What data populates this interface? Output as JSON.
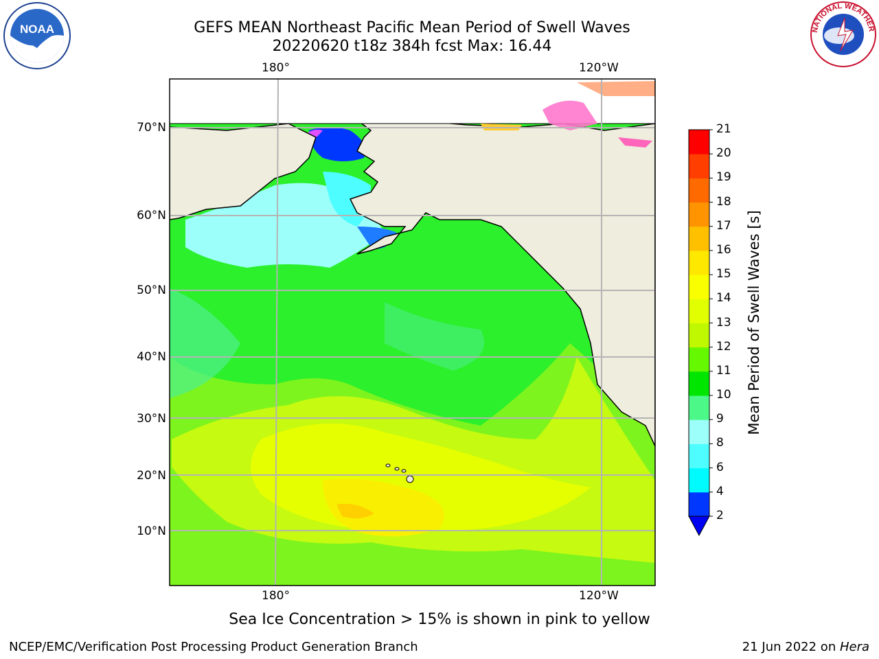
{
  "title": {
    "line1": "GEFS MEAN Northeast Pacific Mean Period of Swell Waves",
    "line2": "20220620 t18z 384h fcst   Max: 16.44"
  },
  "map": {
    "region": "Northeast Pacific",
    "lon_labels_top": [
      "180°",
      "120°W"
    ],
    "lon_labels_bottom": [
      "180°",
      "120°W"
    ],
    "lat_labels": [
      "70°N",
      "60°N",
      "50°N",
      "40°N",
      "30°N",
      "20°N",
      "10°N"
    ],
    "grid": true,
    "land_color": "#efedde",
    "ocean_default_color": "#2bf02b"
  },
  "colorbar": {
    "label": "Mean Period of Swell Waves [s]",
    "ticks": [
      "2",
      "4",
      "6",
      "8",
      "9",
      "10",
      "11",
      "12",
      "13",
      "14",
      "15",
      "16",
      "17",
      "18",
      "19",
      "20",
      "21"
    ],
    "colors": [
      "#0037ff",
      "#00fbff",
      "#4dfdff",
      "#9dfff9",
      "#4cf988",
      "#00e600",
      "#66f800",
      "#bff800",
      "#e1ff00",
      "#faff00",
      "#ffe800",
      "#ffc000",
      "#ff9400",
      "#ff6a00",
      "#ff3e00",
      "#ff0000"
    ],
    "extend_color": "#0000f0"
  },
  "note": "Sea Ice Concentration > 15% is shown in pink to yellow",
  "footer": {
    "credit": "NCEP/EMC/Verification Post Processing Product Generation Branch",
    "date": "21 Jun 2022 on ",
    "machine": "Hera"
  },
  "logos": {
    "left": "NOAA",
    "right_text": "NATIONAL WEATHER SERVICE"
  }
}
